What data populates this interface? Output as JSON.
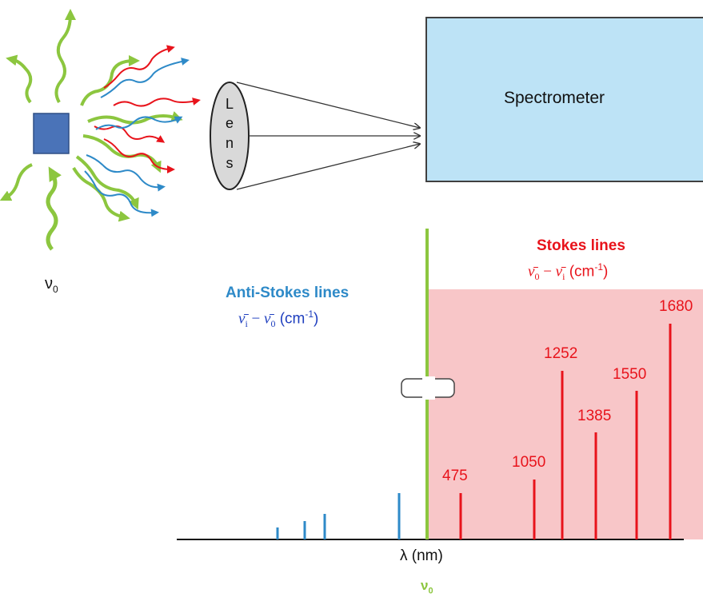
{
  "spectrometer": {
    "label": "Spectrometer"
  },
  "lens": {
    "letters": [
      "L",
      "e",
      "n",
      "s"
    ]
  },
  "sample": {
    "frequency_label": "ν",
    "frequency_sub": "0"
  },
  "stokes": {
    "title": "Stokes lines",
    "formula_main": "ν̄",
    "formula_sub0": "0",
    "formula_minus": " − ",
    "formula_main2": "ν̄",
    "formula_subi": "i",
    "formula_unit": " (cm",
    "formula_exp": "-1",
    "formula_close": ")"
  },
  "anti_stokes": {
    "title": "Anti-Stokes lines",
    "formula_main": "ν̄",
    "formula_subi": "i",
    "formula_minus": " − ",
    "formula_main2": "ν̄",
    "formula_sub0": "0",
    "formula_unit": " (cm",
    "formula_exp": "-1",
    "formula_close": ")"
  },
  "axis": {
    "label": "λ (nm)",
    "center_label": "ν",
    "center_sub": "0"
  },
  "colors": {
    "stokes": "#e8131b",
    "anti_stokes": "#2e8ac8",
    "rayleigh": "#8cc63f",
    "shade": "#f8c6c8",
    "spectrometer_fill": "#bde3f6",
    "sample_fill": "#4a73b8"
  },
  "chart_data": {
    "type": "bar",
    "stokes_lines": [
      {
        "label": "475",
        "shift": 475
      },
      {
        "label": "1050",
        "shift": 1050
      },
      {
        "label": "1252",
        "shift": 1252
      },
      {
        "label": "1385",
        "shift": 1385
      },
      {
        "label": "1550",
        "shift": 1550
      },
      {
        "label": "1680",
        "shift": 1680
      }
    ],
    "anti_stokes_lines": [
      {
        "index": 1
      },
      {
        "index": 2
      },
      {
        "index": 3
      },
      {
        "index": 4
      }
    ]
  }
}
